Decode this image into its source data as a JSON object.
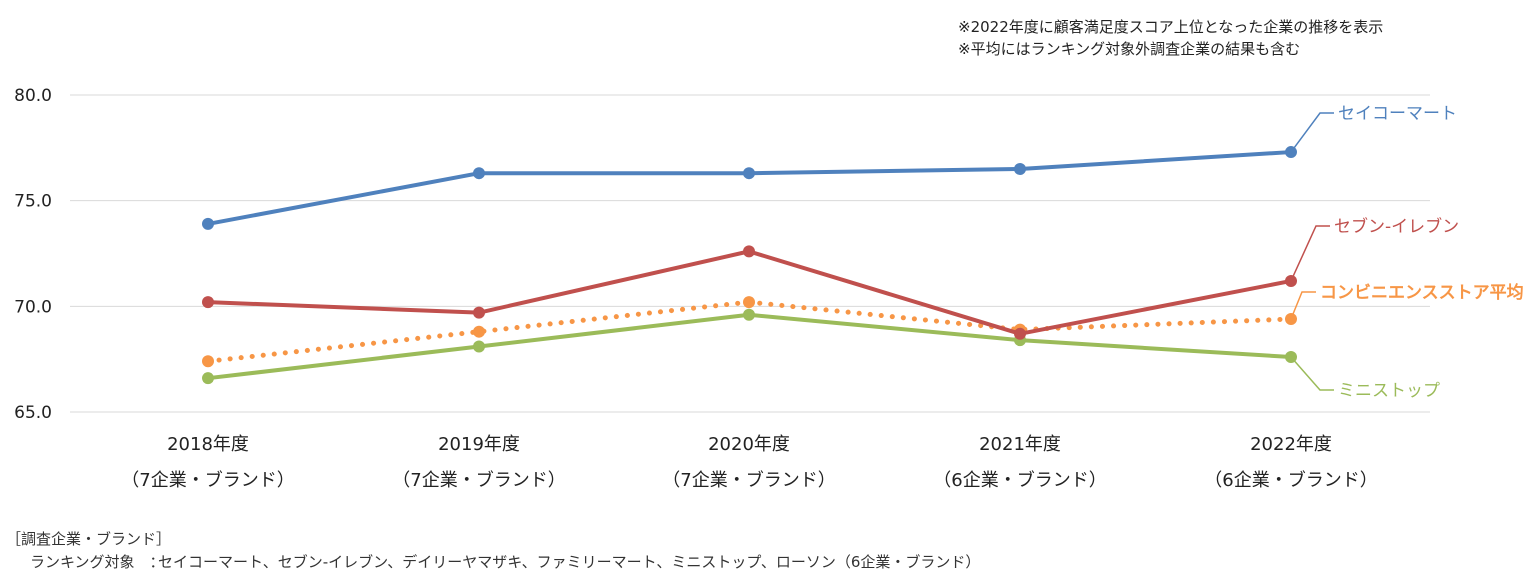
{
  "notes": [
    "※2022年度に顧客満足度スコア上位となった企業の推移を表示",
    "※平均にはランキング対象外調査企業の結果も含む"
  ],
  "chart_data": {
    "type": "line",
    "categories": [
      "2018年度",
      "2019年度",
      "2020年度",
      "2021年度",
      "2022年度"
    ],
    "category_sublabels": [
      "（7企業・ブランド）",
      "（7企業・ブランド）",
      "（7企業・ブランド）",
      "（6企業・ブランド）",
      "（6企業・ブランド）"
    ],
    "ylim": [
      65.0,
      80.0
    ],
    "yticks": [
      "80.0",
      "75.0",
      "70.0",
      "65.0"
    ],
    "grid": true,
    "legend_placement": "right",
    "series": [
      {
        "name": "セイコーマート",
        "values": [
          73.9,
          76.3,
          76.3,
          76.5,
          77.3
        ],
        "color": "#4f81bd",
        "style": "solid",
        "bold": false
      },
      {
        "name": "セブン-イレブン",
        "values": [
          70.2,
          69.7,
          72.6,
          68.7,
          71.2
        ],
        "color": "#c0504d",
        "style": "solid",
        "bold": false
      },
      {
        "name": "コンビニエンスストア平均",
        "values": [
          67.4,
          68.8,
          70.2,
          68.9,
          69.4
        ],
        "color": "#f79646",
        "style": "dotted",
        "bold": true
      },
      {
        "name": "ミニストップ",
        "values": [
          66.6,
          68.1,
          69.6,
          68.4,
          67.6
        ],
        "color": "#9bbb59",
        "style": "solid",
        "bold": false
      }
    ]
  },
  "footer": {
    "title": "［調査企業・ブランド］",
    "label": "ランキング対象　：",
    "list": "セイコーマート、セブン-イレブン、デイリーヤマザキ、ファミリーマート、ミニストップ、ローソン（6企業・ブランド）"
  }
}
